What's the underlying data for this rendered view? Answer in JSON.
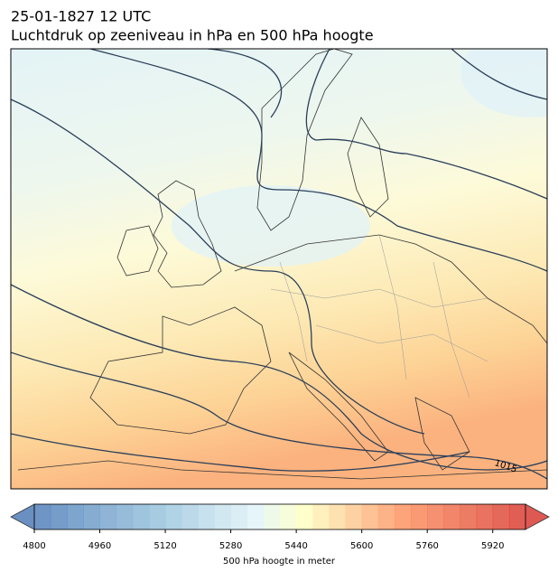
{
  "header": {
    "title": "25-01-1827 12 UTC",
    "subtitle": "Luchtdruk op zeeniveau in hPa en 500 hPa hoogte"
  },
  "map": {
    "contour_labels": [
      "1015"
    ]
  },
  "colorbar": {
    "label": "500 hPa hoogte in meter",
    "lim": [
      4800,
      6000
    ],
    "ticks": [
      4800,
      4960,
      5120,
      5280,
      5440,
      5600,
      5760,
      5920
    ]
  }
}
